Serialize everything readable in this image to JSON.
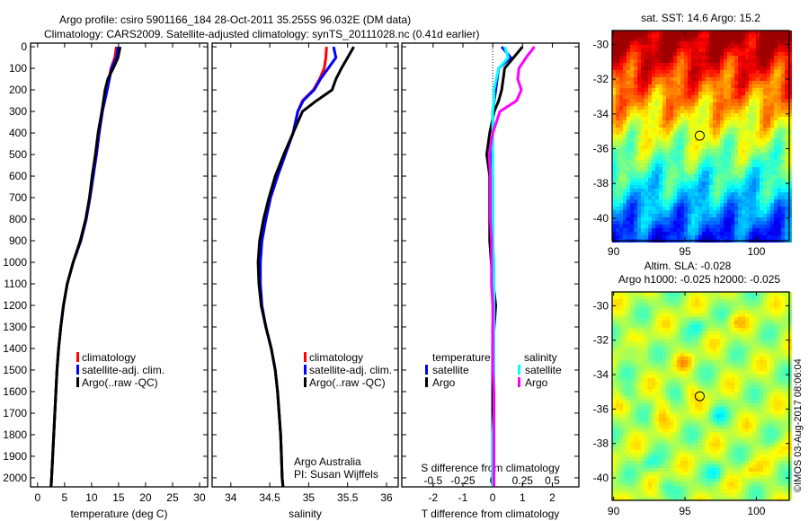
{
  "header": {
    "title1": "Argo profile: csiro 5901166_184 28-Oct-2011 35.255S 96.032E (DM data)",
    "title2": "Climatology: CARS2009. Satellite-adjusted climatology: synTS_20111028.nc (0.41d earlier)"
  },
  "credit": {
    "argo_australia": "Argo Australia",
    "pi": "PI: Susan Wijffels",
    "imos": "©IMOS 03-Aug-2017 08:06:04"
  },
  "colors": {
    "climatology": "#ff0000",
    "satellite": "#0000ff",
    "argo": "#000000",
    "sal_satellite": "#00ffff",
    "sal_argo": "#ff00ff"
  },
  "chart_data": [
    {
      "type": "line",
      "id": "temperature",
      "xlabel": "temperature (deg C)",
      "ylabel": "",
      "xlim": [
        -1.3,
        31.5
      ],
      "ylim": [
        2042,
        -17
      ],
      "xticks": [
        0,
        5,
        10,
        15,
        20,
        25,
        30
      ],
      "yticks": [
        0,
        100,
        200,
        300,
        400,
        500,
        600,
        700,
        800,
        900,
        1000,
        1100,
        1200,
        1300,
        1400,
        1500,
        1600,
        1700,
        1800,
        1900,
        2000
      ],
      "legend": [
        "climatology",
        "satellite-adj. clim.",
        "Argo(..raw -QC)"
      ],
      "depth": [
        0,
        50,
        100,
        150,
        200,
        300,
        400,
        500,
        600,
        700,
        800,
        900,
        1000,
        1100,
        1200,
        1300,
        1400,
        1500,
        1600,
        1700,
        1800,
        1900,
        2000,
        2040
      ],
      "series": [
        {
          "name": "climatology",
          "color": "#ff0000",
          "values": [
            14.6,
            14.3,
            13.6,
            13.2,
            12.8,
            12.0,
            11.4,
            10.9,
            10.3,
            9.7,
            9.0,
            8.0,
            6.6,
            5.5,
            4.8,
            4.3,
            3.9,
            3.6,
            3.4,
            3.2,
            3.0,
            2.8,
            2.6,
            2.5
          ]
        },
        {
          "name": "satellite-adj. clim.",
          "color": "#0000ff",
          "values": [
            14.9,
            14.6,
            13.7,
            13.3,
            12.9,
            12.0,
            11.4,
            10.9,
            10.3,
            9.7,
            9.0,
            8.0,
            6.6,
            5.5,
            4.8,
            4.3,
            3.9,
            3.6,
            3.4,
            3.2,
            3.0,
            2.8,
            2.6,
            2.5
          ]
        },
        {
          "name": "Argo(..raw -QC)",
          "color": "#000000",
          "values": [
            15.3,
            14.9,
            14.0,
            13.0,
            12.5,
            11.9,
            11.2,
            10.7,
            10.1,
            9.6,
            8.9,
            7.9,
            6.6,
            5.5,
            4.8,
            4.3,
            3.9,
            3.6,
            3.4,
            3.2,
            3.0,
            2.8,
            2.6,
            2.5
          ]
        }
      ]
    },
    {
      "type": "line",
      "id": "salinity",
      "xlabel": "salinity",
      "xlim": [
        33.76,
        36.15
      ],
      "ylim": [
        2042,
        -17
      ],
      "xticks": [
        34,
        34.5,
        35,
        35.5,
        36
      ],
      "legend": [
        "climatology",
        "satellite-adj. clim.",
        "Argo(..raw -QC)"
      ],
      "depth": [
        0,
        50,
        100,
        150,
        200,
        250,
        300,
        400,
        500,
        600,
        700,
        800,
        900,
        1000,
        1100,
        1200,
        1300,
        1400,
        1500,
        1600,
        1700,
        1800,
        1900,
        2000,
        2040
      ],
      "series": [
        {
          "name": "climatology",
          "color": "#ff0000",
          "values": [
            35.23,
            35.22,
            35.2,
            35.14,
            35.06,
            34.92,
            34.86,
            34.8,
            34.7,
            34.6,
            34.51,
            34.45,
            34.4,
            34.37,
            34.37,
            34.39,
            34.45,
            34.52,
            34.57,
            34.6,
            34.62,
            34.64,
            34.65,
            34.66,
            34.67
          ]
        },
        {
          "name": "satellite-adj. clim.",
          "color": "#0000ff",
          "values": [
            35.32,
            35.35,
            35.25,
            35.15,
            35.07,
            34.93,
            34.86,
            34.8,
            34.7,
            34.6,
            34.51,
            34.45,
            34.4,
            34.38,
            34.38,
            34.4,
            34.45,
            34.52,
            34.57,
            34.6,
            34.62,
            34.64,
            34.65,
            34.66,
            34.67
          ]
        },
        {
          "name": "Argo(..raw -QC)",
          "color": "#000000",
          "values": [
            35.58,
            35.5,
            35.42,
            35.35,
            35.3,
            35.1,
            34.92,
            34.8,
            34.68,
            34.57,
            34.49,
            34.42,
            34.37,
            34.35,
            34.36,
            34.39,
            34.45,
            34.52,
            34.57,
            34.6,
            34.62,
            34.64,
            34.65,
            34.66,
            34.67
          ]
        }
      ]
    },
    {
      "type": "line",
      "id": "difference",
      "xlabel": "T difference from climatology",
      "xlabel2": "S difference from climatology",
      "xlim": [
        -3.05,
        2.89
      ],
      "xticks": [
        -2,
        -1,
        0,
        1,
        2
      ],
      "xticks2": [
        -0.5,
        -0.25,
        0,
        0.25,
        0.5
      ],
      "xticks2_labels": [
        "-0.5",
        "-0.25",
        "0",
        "0.25",
        "0.5"
      ],
      "ylim": [
        2042,
        -17
      ],
      "legend_titles": [
        "temperature",
        "salinity"
      ],
      "legend": [
        "satellite",
        "Argo",
        "satellite",
        "Argo"
      ],
      "depth": [
        0,
        50,
        100,
        150,
        200,
        250,
        300,
        400,
        500,
        600,
        700,
        800,
        900,
        1000,
        1100,
        1200,
        1300,
        1400,
        1500,
        1600,
        1700,
        1800,
        1900,
        2000,
        2040
      ],
      "series": [
        {
          "name": "T satellite",
          "kind": "T",
          "color": "#0000ff",
          "values": [
            0.3,
            0.6,
            0.2,
            0.15,
            0.1,
            0.05,
            0,
            0,
            -0.05,
            0,
            0,
            0,
            0,
            0,
            0.02,
            0.05,
            0,
            0,
            0,
            0,
            0,
            0,
            0,
            0,
            0
          ]
        },
        {
          "name": "T Argo",
          "kind": "T",
          "color": "#000000",
          "values": [
            1.0,
            0.7,
            0.4,
            0.35,
            0.3,
            0.2,
            0.05,
            -0.1,
            -0.2,
            -0.1,
            -0.1,
            -0.1,
            -0.1,
            -0.05,
            0.02,
            0.1,
            0.05,
            0,
            0,
            0,
            0,
            0,
            0,
            0,
            0
          ]
        },
        {
          "name": "S satellite",
          "kind": "S",
          "color": "#00ffff",
          "values": [
            0.1,
            0.13,
            0.05,
            0.03,
            0.01,
            0.01,
            0,
            0,
            0,
            0,
            0,
            0,
            0,
            0.01,
            0.01,
            0.01,
            0.01,
            0.01,
            0.01,
            0.01,
            0.01,
            0,
            0,
            0,
            0
          ]
        },
        {
          "name": "S Argo",
          "kind": "S",
          "color": "#ff00ff",
          "values": [
            0.35,
            0.28,
            0.22,
            0.21,
            0.24,
            0.2,
            0.06,
            0,
            -0.03,
            -0.02,
            -0.02,
            -0.02,
            -0.01,
            -0.01,
            -0.01,
            0,
            0,
            0,
            0,
            0.01,
            0.01,
            0.01,
            0.01,
            0.01,
            0.01
          ]
        }
      ]
    },
    {
      "type": "heatmap",
      "id": "sst-map",
      "title": "sat. SST: 14.6 Argo: 15.2",
      "xlim": [
        89.9,
        102.3
      ],
      "ylim": [
        -41.3,
        -29.2
      ],
      "xticks": [
        90,
        95,
        100
      ],
      "yticks": [
        -30,
        -32,
        -34,
        -36,
        -38,
        -40
      ],
      "marker": {
        "lon": 96.032,
        "lat": -35.255
      }
    },
    {
      "type": "heatmap",
      "id": "sla-map",
      "title": "Altim. SLA: -0.028",
      "subtitle": "Argo h1000: -0.025 h2000: -0.025",
      "xlim": [
        89.9,
        102.3
      ],
      "ylim": [
        -41.3,
        -29.2
      ],
      "xticks": [
        90,
        95,
        100
      ],
      "yticks": [
        -30,
        -32,
        -34,
        -36,
        -38,
        -40
      ],
      "marker": {
        "lon": 96.032,
        "lat": -35.255
      }
    }
  ]
}
